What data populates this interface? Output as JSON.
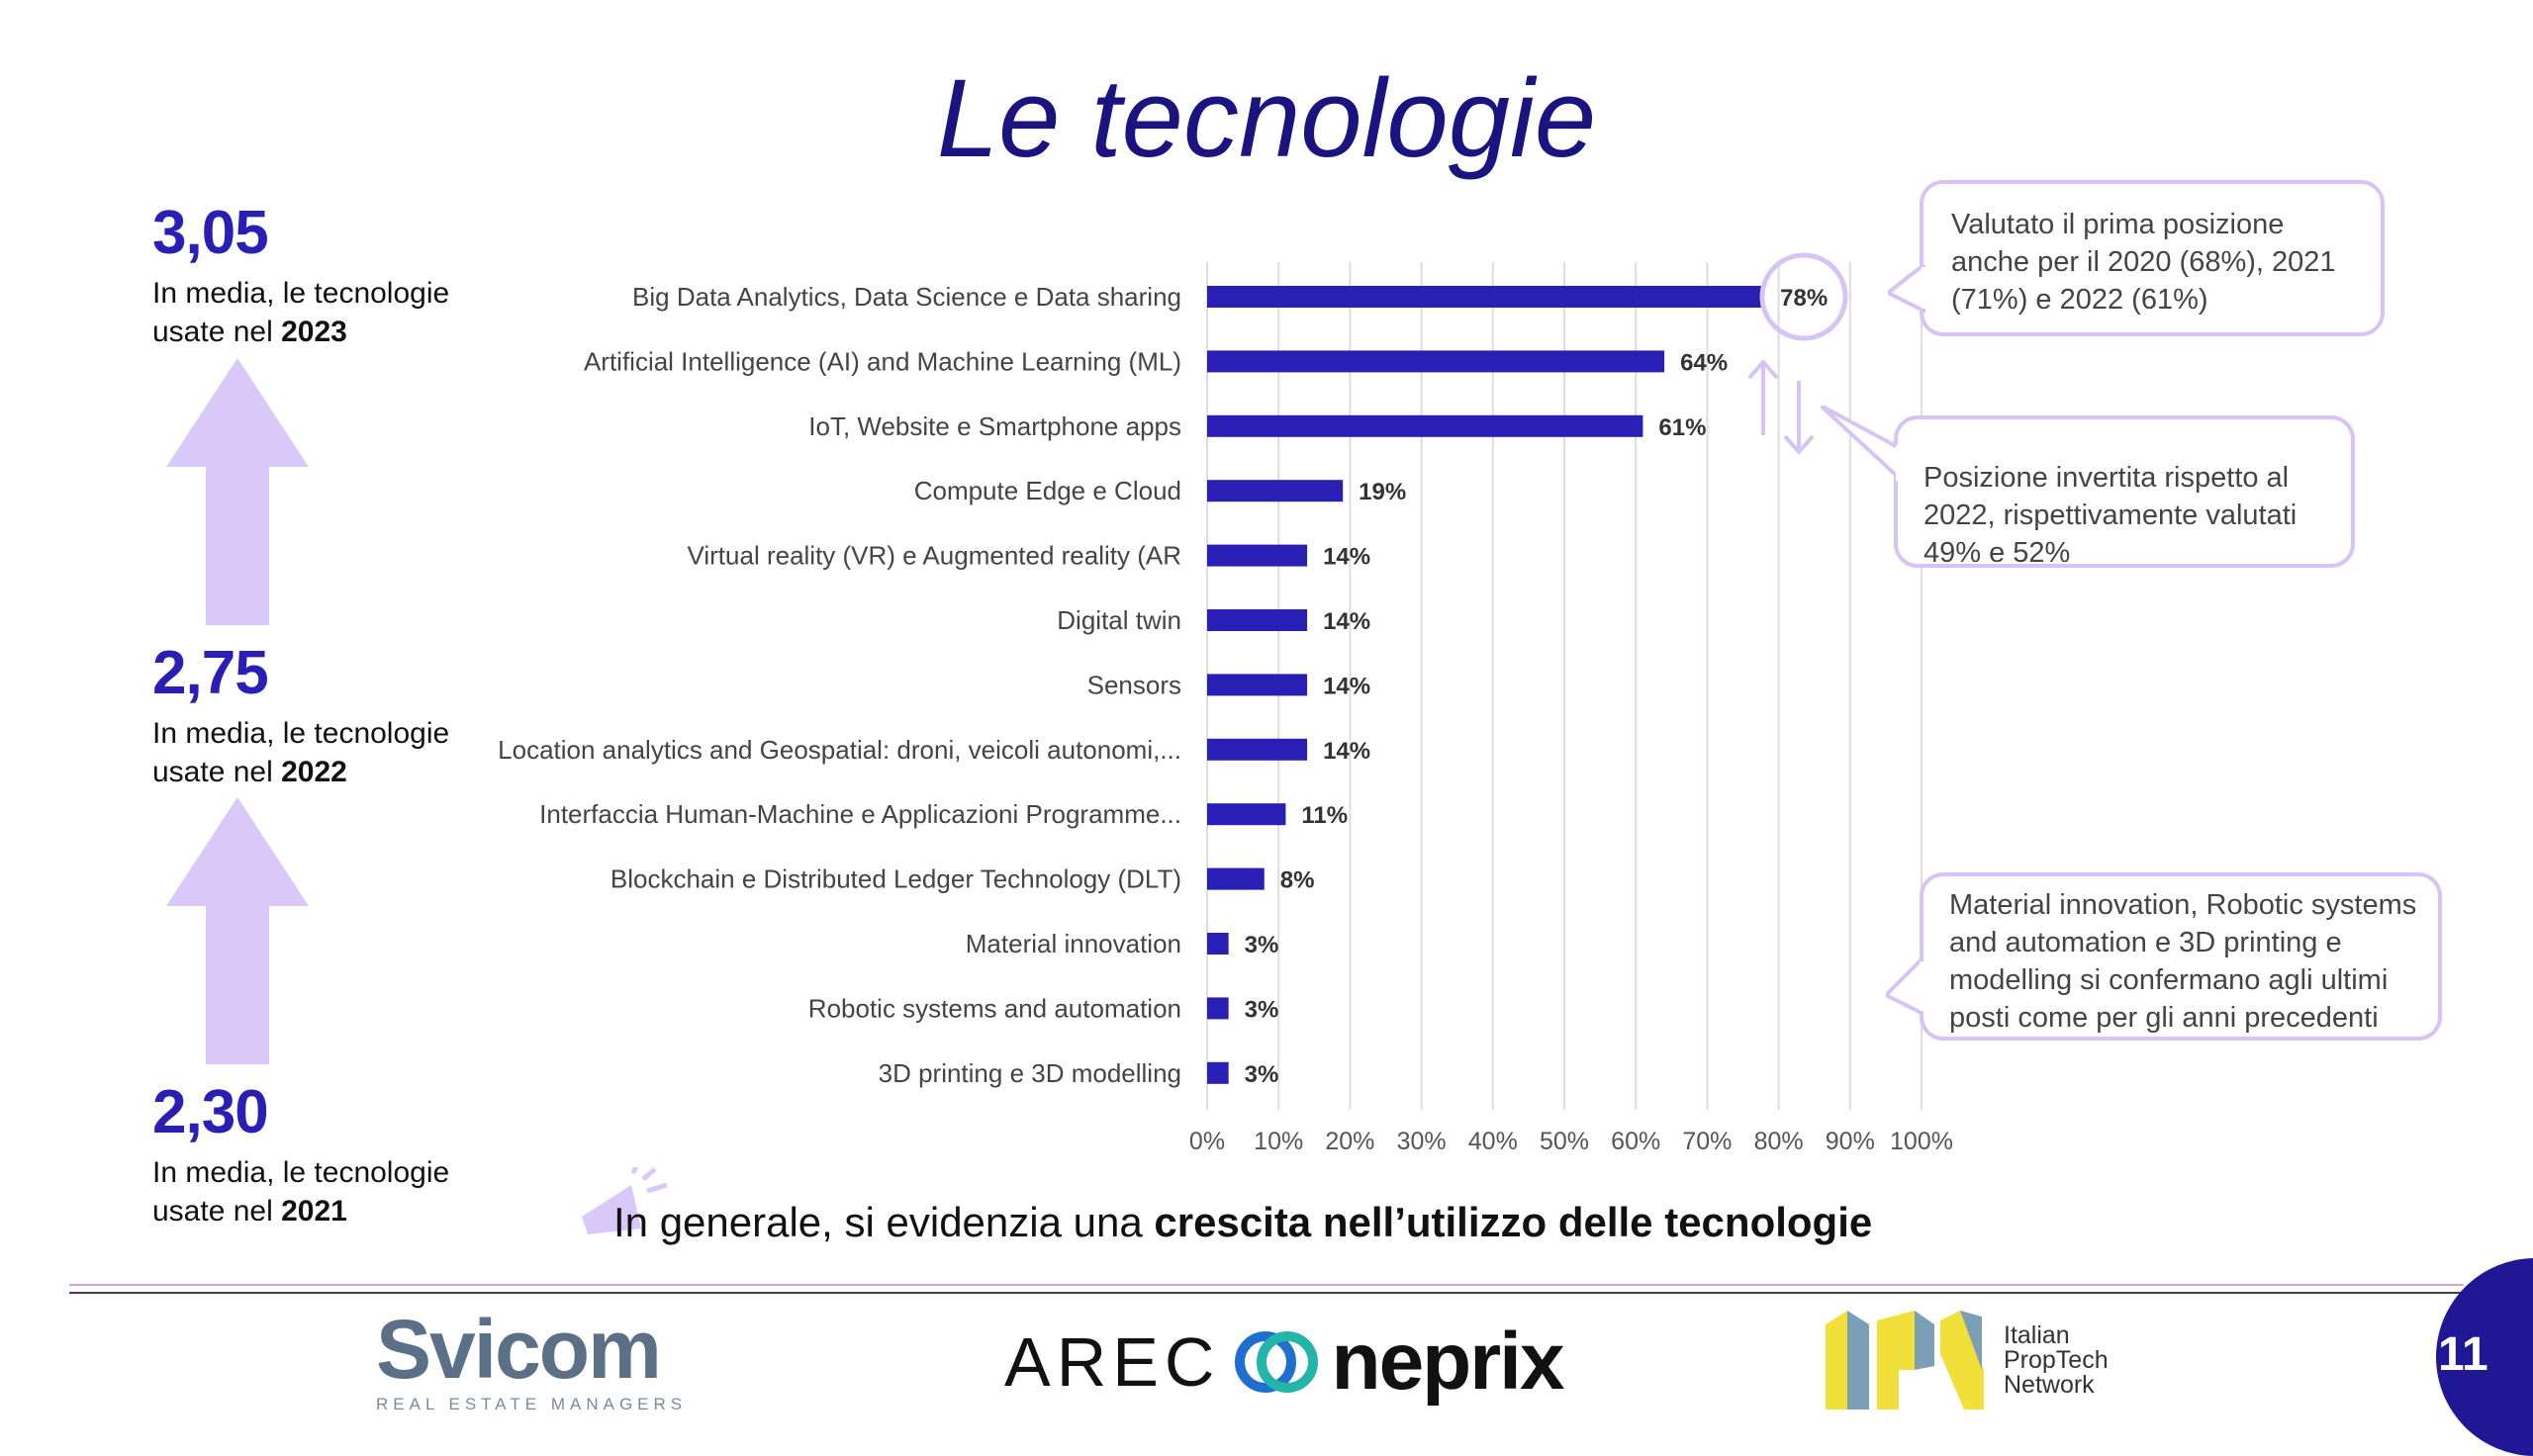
{
  "title": "Le tecnologie",
  "stats": [
    {
      "value": "3,05",
      "line1": "In media, le tecnologie",
      "line2_prefix": "usate nel ",
      "year": "2023"
    },
    {
      "value": "2,75",
      "line1": "In media, le tecnologie",
      "line2_prefix": "usate nel ",
      "year": "2022"
    },
    {
      "value": "2,30",
      "line1": "In media, le tecnologie",
      "line2_prefix": "usate nel ",
      "year": "2021"
    }
  ],
  "chart_data": {
    "type": "bar",
    "orientation": "horizontal",
    "categories": [
      "Big Data Analytics, Data Science e Data sharing",
      "Artificial Intelligence (AI) and Machine Learning (ML)",
      "IoT, Website e Smartphone apps",
      "Compute Edge e Cloud",
      "Virtual reality (VR) e Augmented reality (AR",
      "Digital twin",
      "Sensors",
      "Location analytics and Geospatial: droni, veicoli autonomi,...",
      "Interfaccia Human-Machine e Applicazioni Programme...",
      "Blockchain e Distributed Ledger Technology (DLT)",
      "Material innovation",
      "Robotic systems and automation",
      "3D printing e 3D modelling"
    ],
    "values": [
      78,
      64,
      61,
      19,
      14,
      14,
      14,
      14,
      11,
      8,
      3,
      3,
      3
    ],
    "value_labels": [
      "78%",
      "64%",
      "61%",
      "19%",
      "14%",
      "14%",
      "14%",
      "14%",
      "11%",
      "8%",
      "3%",
      "3%",
      "3%"
    ],
    "xlim": [
      0,
      100
    ],
    "xticks": [
      "0%",
      "10%",
      "20%",
      "30%",
      "40%",
      "50%",
      "60%",
      "70%",
      "80%",
      "90%",
      "100%"
    ],
    "grid": true,
    "bar_color": "#2a1fb5"
  },
  "callouts": {
    "top": "Valutato il prima posizione anche per il 2020 (68%), 2021 (71%) e 2022 (61%)",
    "middle": "Posizione invertita rispetto al 2022, rispettivamente valutati 49% e 52%",
    "bottom": "Material innovation, Robotic systems and automation e 3D printing e modelling si confermano agli ultimi posti come per gli anni precedenti"
  },
  "conclusion": {
    "prefix": "In generale, si evidenzia una ",
    "bold": "crescita nell’utilizzo delle tecnologie"
  },
  "logos": {
    "svicom": "Svicom",
    "svicom_sub": "REAL ESTATE MANAGERS",
    "arec": "AREC",
    "neprix": "neprix",
    "ipn": [
      "Italian",
      "PropTech",
      "Network"
    ]
  },
  "page_number": "11",
  "colors": {
    "title": "#1b1480",
    "accent": "#2a1fb5",
    "arrow": "#d9c8f8",
    "callout_border": "#d6c4f5",
    "badge": "#1f1796"
  }
}
